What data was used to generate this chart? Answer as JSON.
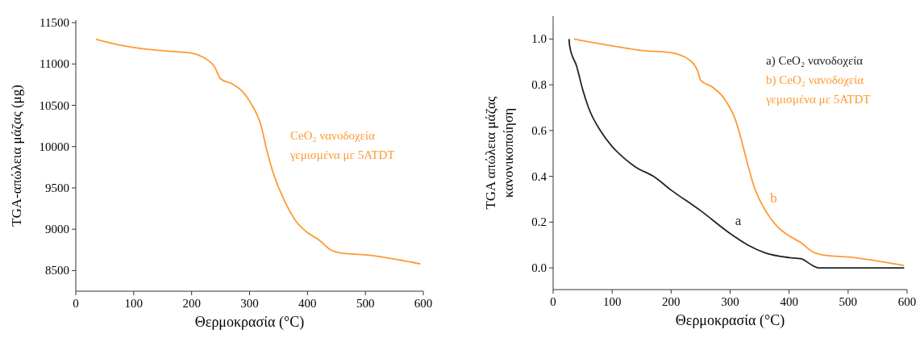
{
  "chart_data": [
    {
      "type": "line",
      "xlabel": "Θερμοκρασία (°C)",
      "ylabel": "TGA-απώλεια μάζας (μg)",
      "xlim": [
        0,
        600
      ],
      "ylim": [
        8250,
        11530
      ],
      "xticks": [
        0,
        100,
        200,
        300,
        400,
        500,
        600
      ],
      "yticks": [
        8500,
        9000,
        9500,
        10000,
        10500,
        11000,
        11500
      ],
      "legend": "right",
      "series": [
        {
          "name": "CeO₂ νανοδοχεία γεμισμένα με 5ATDT",
          "color": "#ff9933",
          "x": [
            35,
            50,
            100,
            150,
            200,
            220,
            240,
            250,
            270,
            290,
            300,
            320,
            330,
            340,
            360,
            380,
            400,
            420,
            440,
            460,
            500,
            550,
            595
          ],
          "values": [
            11300,
            11270,
            11200,
            11160,
            11130,
            11080,
            10960,
            10820,
            10760,
            10650,
            10550,
            10250,
            9950,
            9700,
            9350,
            9100,
            8960,
            8870,
            8750,
            8710,
            8690,
            8640,
            8580
          ]
        }
      ]
    },
    {
      "type": "line",
      "xlabel": "Θερμοκρασία (°C)",
      "ylabel": "TGA απώλεια μάζας κανονικοποίηση",
      "xlim": [
        0,
        600
      ],
      "ylim": [
        -0.095,
        1.1
      ],
      "xticks": [
        0,
        100,
        200,
        300,
        400,
        500,
        600
      ],
      "yticks": [
        {
          "value": 0,
          "label": "0.0"
        },
        0.2,
        0.4,
        0.6,
        0.8,
        {
          "value": 1,
          "label": "1.0"
        }
      ],
      "legend": "top right",
      "series": [
        {
          "name": "a) CeO₂ νανοδοχεία",
          "color": "#222222",
          "x": [
            27,
            28,
            40,
            50,
            60,
            80,
            100,
            120,
            140,
            170,
            200,
            250,
            300,
            330,
            360,
            400,
            420,
            440,
            450,
            500,
            595
          ],
          "values": [
            1.0,
            0.97,
            0.88,
            0.78,
            0.7,
            0.6,
            0.53,
            0.48,
            0.44,
            0.4,
            0.34,
            0.25,
            0.15,
            0.1,
            0.065,
            0.045,
            0.04,
            0.01,
            0.0,
            0.0,
            0.0
          ]
        },
        {
          "name": "b) CeO₂ νανοδοχεία γεμισμένα με 5ATDT",
          "color": "#ff9933",
          "x": [
            35,
            100,
            150,
            200,
            230,
            245,
            250,
            270,
            290,
            310,
            320,
            330,
            340,
            360,
            380,
            400,
            420,
            440,
            460,
            510,
            550,
            595
          ],
          "values": [
            1.0,
            0.97,
            0.95,
            0.94,
            0.91,
            0.86,
            0.82,
            0.79,
            0.74,
            0.64,
            0.55,
            0.45,
            0.36,
            0.25,
            0.18,
            0.14,
            0.11,
            0.07,
            0.055,
            0.045,
            0.03,
            0.01
          ]
        }
      ],
      "annotations": [
        "a",
        "b"
      ]
    }
  ]
}
